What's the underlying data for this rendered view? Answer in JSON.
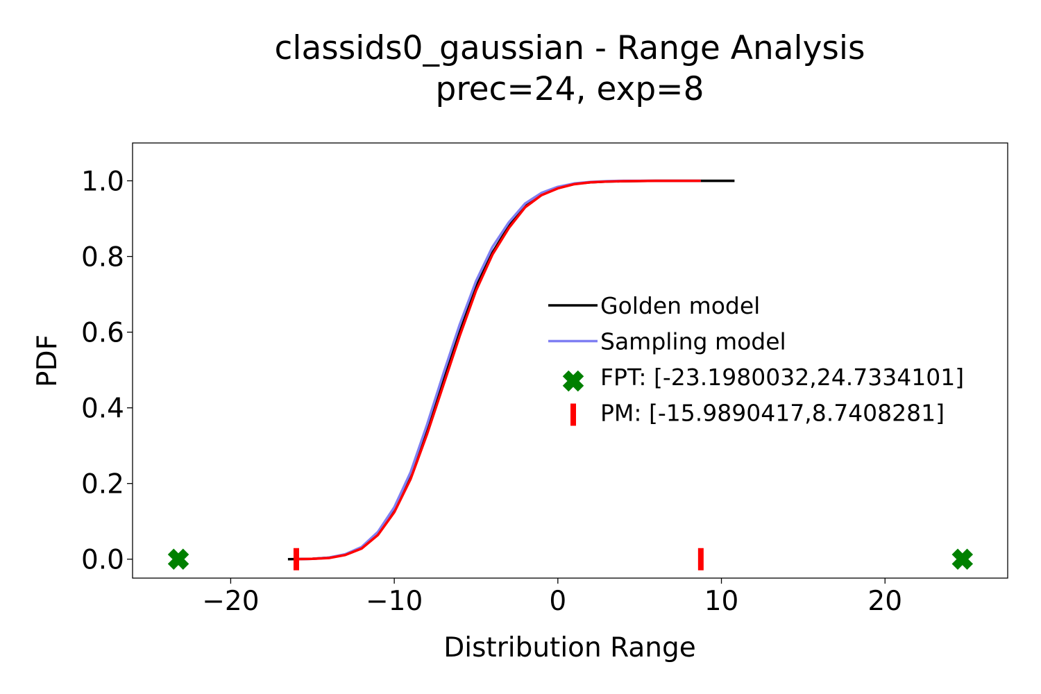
{
  "chart_data": {
    "type": "line",
    "title": "classids0_gaussian - Range Analysis",
    "subtitle": "prec=24, exp=8",
    "xlabel": "Distribution Range",
    "ylabel": "PDF",
    "xlim": [
      -26,
      27.5
    ],
    "ylim": [
      -0.05,
      1.1
    ],
    "x_ticks": [
      -20,
      -10,
      0,
      10,
      20
    ],
    "x_tick_labels": [
      "−20",
      "−10",
      "0",
      "10",
      "20"
    ],
    "y_ticks": [
      0.0,
      0.2,
      0.4,
      0.6,
      0.8,
      1.0
    ],
    "y_tick_labels": [
      "0.0",
      "0.2",
      "0.4",
      "0.6",
      "0.8",
      "1.0"
    ],
    "grid": false,
    "legend_position": "center-right",
    "series": [
      {
        "name": "Golden model",
        "kind": "line",
        "color": "#000000",
        "x": [
          -16.5,
          -15,
          -14,
          -13,
          -12,
          -11,
          -10,
          -9,
          -8,
          -7,
          -6,
          -5,
          -4,
          -3,
          -2,
          -1,
          0,
          1,
          2,
          3,
          4,
          6,
          8,
          10.8
        ],
        "y": [
          0.0,
          0.001,
          0.004,
          0.012,
          0.03,
          0.068,
          0.13,
          0.22,
          0.34,
          0.47,
          0.6,
          0.72,
          0.81,
          0.88,
          0.935,
          0.965,
          0.982,
          0.992,
          0.996,
          0.998,
          0.999,
          1.0,
          1.0,
          1.0
        ]
      },
      {
        "name": "Sampling model",
        "kind": "line",
        "color": "#7f7ff2",
        "x": [
          -16,
          -15,
          -14,
          -13,
          -12,
          -11,
          -10,
          -9,
          -8,
          -7,
          -6,
          -5,
          -4,
          -3,
          -2,
          -1,
          0,
          1,
          2,
          3,
          4,
          6,
          8,
          8.74
        ],
        "y": [
          0.0,
          0.001,
          0.004,
          0.013,
          0.032,
          0.072,
          0.137,
          0.23,
          0.355,
          0.49,
          0.62,
          0.735,
          0.825,
          0.89,
          0.94,
          0.968,
          0.984,
          0.993,
          0.997,
          0.999,
          1.0,
          1.0,
          1.0,
          1.0
        ]
      },
      {
        "name": "",
        "kind": "line",
        "color": "#ff0000",
        "x": [
          -15.99,
          -15,
          -14,
          -13,
          -12,
          -11,
          -10,
          -9,
          -8,
          -7,
          -6,
          -5,
          -4,
          -3,
          -2,
          -1,
          0,
          1,
          2,
          3,
          4,
          6,
          8,
          8.74
        ],
        "y": [
          0.0,
          0.001,
          0.003,
          0.011,
          0.028,
          0.064,
          0.124,
          0.212,
          0.33,
          0.46,
          0.59,
          0.71,
          0.805,
          0.875,
          0.93,
          0.962,
          0.98,
          0.991,
          0.996,
          0.998,
          0.999,
          1.0,
          1.0,
          1.0
        ]
      },
      {
        "name": "FPT: [-23.1980032,24.7334101]",
        "kind": "marker-x",
        "color": "#008000",
        "x": [
          -23.1980032,
          24.7334101
        ],
        "y": [
          0,
          0
        ]
      },
      {
        "name": "PM: [-15.9890417,8.7408281]",
        "kind": "marker-vline",
        "color": "#ff0000",
        "x": [
          -15.9890417,
          8.7408281
        ],
        "y": [
          0,
          0
        ]
      }
    ]
  }
}
